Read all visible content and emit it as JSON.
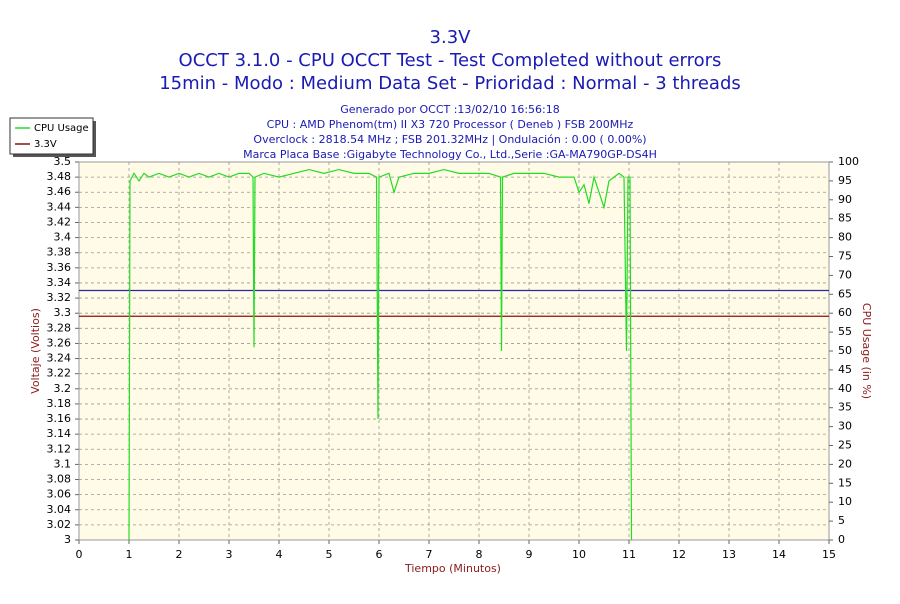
{
  "chart_data": {
    "type": "line",
    "titles": [
      "3.3V",
      "OCCT 3.1.0 - CPU OCCT Test - Test Completed without errors",
      "15min - Modo : Medium Data Set - Prioridad : Normal - 3 threads"
    ],
    "subtitle_lines": [
      "Generado por OCCT :13/02/10 16:56:18",
      "CPU : AMD Phenom(tm) II X3 720 Processor ( Deneb ) FSB 200MHz",
      "Overclock : 2818.54 MHz ; FSB 201.32MHz | Ondulación : 0.00 ( 0.00%)",
      "Marca Placa Base :Gigabyte Technology Co., Ltd.,Serie :GA-MA790GP-DS4H"
    ],
    "x_label": "Tiempo (Minutos)",
    "y_label": "Voltaje (Voltios)",
    "y2_label": "CPU Usage (in %)",
    "xlim": [
      0,
      15
    ],
    "xticks": [
      0,
      1,
      2,
      3,
      4,
      5,
      6,
      7,
      8,
      9,
      10,
      11,
      12,
      13,
      14,
      15
    ],
    "ylim": [
      3,
      3.5
    ],
    "yticks": [
      3,
      3.02,
      3.04,
      3.06,
      3.08,
      3.1,
      3.12,
      3.14,
      3.16,
      3.18,
      3.2,
      3.22,
      3.24,
      3.26,
      3.28,
      3.3,
      3.32,
      3.34,
      3.36,
      3.38,
      3.4,
      3.42,
      3.44,
      3.46,
      3.48,
      3.5
    ],
    "y2lim": [
      0,
      100
    ],
    "y2ticks": [
      0,
      5,
      10,
      15,
      20,
      25,
      30,
      35,
      40,
      45,
      50,
      55,
      60,
      65,
      70,
      75,
      80,
      85,
      90,
      95,
      100
    ],
    "grid": true,
    "legend": "top-left",
    "reference_lines": [
      {
        "value": 3.33,
        "color": "#2a2aa0"
      }
    ],
    "series": [
      {
        "name": "CPU Usage",
        "color": "#22dd22",
        "axis": "y2",
        "x": [
          1.0,
          1.02,
          1.1,
          1.2,
          1.3,
          1.4,
          1.6,
          1.8,
          2.0,
          2.2,
          2.4,
          2.6,
          2.8,
          3.0,
          3.2,
          3.4,
          3.48,
          3.5,
          3.52,
          3.7,
          4.0,
          4.3,
          4.6,
          4.9,
          5.2,
          5.5,
          5.8,
          5.95,
          5.98,
          6.0,
          6.2,
          6.3,
          6.4,
          6.7,
          7.0,
          7.3,
          7.6,
          7.9,
          8.2,
          8.43,
          8.45,
          8.47,
          8.7,
          9.0,
          9.3,
          9.6,
          9.9,
          10.0,
          10.1,
          10.2,
          10.3,
          10.4,
          10.5,
          10.6,
          10.8,
          10.9,
          10.95,
          10.98,
          11.02,
          11.05
        ],
        "values": [
          0,
          95,
          97,
          95,
          97,
          96,
          97,
          96,
          97,
          96,
          97,
          96,
          97,
          96,
          97,
          97,
          96,
          51,
          96,
          97,
          96,
          97,
          98,
          97,
          98,
          97,
          97,
          96,
          32,
          96,
          97,
          92,
          96,
          97,
          97,
          98,
          97,
          97,
          97,
          96,
          50,
          96,
          97,
          97,
          97,
          96,
          96,
          92,
          94,
          89,
          96,
          92,
          88,
          95,
          97,
          96,
          50,
          96,
          96,
          0
        ]
      },
      {
        "name": "3.3V",
        "color": "#8b1010",
        "axis": "y",
        "x": [
          0,
          15
        ],
        "values": [
          3.296,
          3.296
        ]
      }
    ]
  }
}
